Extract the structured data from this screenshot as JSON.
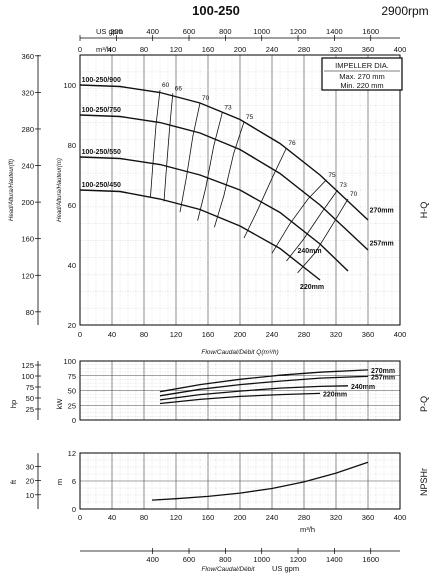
{
  "header": {
    "title": "100-250",
    "speed": "2900rpm"
  },
  "legend_box": {
    "title": "IMPELLER DIA.",
    "max": "Max. 270 mm",
    "min": "Min. 220 mm"
  },
  "side_labels": {
    "hq": "H-Q",
    "pq": "P-Q",
    "npsh": "NPSHr"
  },
  "axes": {
    "top_unit": "US gpm",
    "flow_unit": "m³/h",
    "flow_label": "Flow/Caudal/Débit Q(m³/h)",
    "flow_label_bottom": "Flow/Caudal/Débit",
    "gpm_unit_bottom": "US gpm",
    "head_m_label": "Head/Altura/Hauteur(m)",
    "head_ft_label": "Head/Altura/Hauteur(ft)",
    "hp_unit": "hp",
    "kw_unit": "kW",
    "ft_unit": "ft",
    "m_unit": "m"
  },
  "chart_data": [
    {
      "type": "line",
      "title": "100-250",
      "xlabel": "Flow/Caudal/Débit Q(m³/h)",
      "ylabel": "Head/Altura/Hauteur(m)",
      "xlim": [
        0,
        400
      ],
      "ylim": [
        20,
        110
      ],
      "x_ticks": [
        0,
        40,
        80,
        120,
        160,
        200,
        240,
        280,
        320,
        360,
        400
      ],
      "y_ticks": [
        20,
        40,
        60,
        80,
        100
      ],
      "secondary_y_ticks_ft": [
        80,
        120,
        160,
        200,
        240,
        280,
        320,
        360
      ],
      "secondary_x_ticks_usgpm": [
        0,
        200,
        400,
        600,
        800,
        1000,
        1200,
        1400,
        1600
      ],
      "series": [
        {
          "name": "100-250/900",
          "label_right": "270mm",
          "x": [
            0,
            50,
            100,
            150,
            200,
            250,
            300,
            360
          ],
          "y": [
            100,
            99.5,
            97.5,
            94,
            88.5,
            80.5,
            70,
            55
          ]
        },
        {
          "name": "100-250/750",
          "label_right": "257mm",
          "x": [
            0,
            50,
            100,
            150,
            200,
            250,
            300,
            360
          ],
          "y": [
            90,
            89.5,
            87.5,
            84,
            78.5,
            70.5,
            60,
            45
          ]
        },
        {
          "name": "100-250/550",
          "label_right": "240mm",
          "x": [
            0,
            50,
            100,
            150,
            200,
            250,
            300,
            335
          ],
          "y": [
            76,
            75.5,
            73.5,
            70,
            65,
            57.5,
            47,
            38
          ]
        },
        {
          "name": "100-250/450",
          "label_right": "220mm",
          "x": [
            0,
            50,
            100,
            150,
            200,
            250,
            300
          ],
          "y": [
            65,
            64.5,
            62,
            58.5,
            53,
            45.5,
            35
          ]
        }
      ],
      "efficiency_curves": [
        {
          "label": "60",
          "x": [
            100,
            95,
            91,
            88
          ],
          "y": [
            98.3,
            86.6,
            73.2,
            62.5
          ]
        },
        {
          "label": "66",
          "x": [
            116,
            112,
            108,
            105
          ],
          "y": [
            97.2,
            85.6,
            72.1,
            61.2
          ]
        },
        {
          "label": "70",
          "x": [
            150,
            141,
            133,
            125
          ],
          "y": [
            94.0,
            82.8,
            69.2,
            57.6
          ]
        },
        {
          "label": "73",
          "x": [
            178,
            167,
            157,
            147
          ],
          "y": [
            90.9,
            79.5,
            65.5,
            54.8
          ]
        },
        {
          "label": "75",
          "x": [
            205,
            192,
            180,
            168
          ],
          "y": [
            87.7,
            77.1,
            63.3,
            52.6
          ]
        },
        {
          "label": "76",
          "x": [
            258,
            240,
            222,
            205
          ],
          "y": [
            79.0,
            68.9,
            58.3,
            49.0
          ]
        },
        {
          "label": "75",
          "x": [
            308,
            285,
            262,
            240
          ],
          "y": [
            68.4,
            62.0,
            53.6,
            43.9
          ]
        },
        {
          "label": "73",
          "x": [
            322,
            302,
            280,
            258
          ],
          "y": [
            65.0,
            57.5,
            48.8,
            41.3
          ]
        },
        {
          "label": "70",
          "x": [
            335,
            316,
            294,
            272
          ],
          "y": [
            62.0,
            53.6,
            44.1,
            37.4
          ]
        }
      ]
    },
    {
      "type": "line",
      "title": "",
      "ylabel": "kW",
      "xlim": [
        0,
        400
      ],
      "ylim": [
        0,
        100
      ],
      "y_ticks": [
        0,
        25,
        50,
        75,
        100
      ],
      "secondary_y_ticks_hp": [
        25,
        50,
        75,
        100,
        125
      ],
      "series": [
        {
          "name": "270mm",
          "x": [
            100,
            150,
            200,
            250,
            300,
            360
          ],
          "y": [
            48,
            60,
            69,
            76,
            81,
            85
          ]
        },
        {
          "name": "257mm",
          "x": [
            100,
            150,
            200,
            250,
            300,
            360
          ],
          "y": [
            41,
            52,
            60,
            66,
            71,
            74
          ]
        },
        {
          "name": "240mm",
          "x": [
            100,
            150,
            200,
            250,
            300,
            335
          ],
          "y": [
            34,
            43,
            49,
            54,
            57,
            58
          ]
        },
        {
          "name": "220mm",
          "x": [
            100,
            150,
            200,
            250,
            300
          ],
          "y": [
            28,
            35,
            40,
            43,
            45
          ]
        }
      ]
    },
    {
      "type": "line",
      "title": "",
      "ylabel": "m",
      "xlabel": "Flow/Caudal/Débit US gpm",
      "xlim": [
        0,
        400
      ],
      "ylim": [
        0,
        12
      ],
      "y_ticks": [
        0,
        6,
        12
      ],
      "secondary_y_ticks_ft": [
        10,
        20,
        30
      ],
      "secondary_x_ticks_usgpm": [
        400,
        600,
        800,
        1000,
        1200,
        1400,
        1600
      ],
      "series": [
        {
          "name": "NPSHr",
          "x": [
            90,
            120,
            160,
            200,
            240,
            280,
            320,
            360
          ],
          "y": [
            1.9,
            2.2,
            2.7,
            3.4,
            4.4,
            5.8,
            7.7,
            10.0
          ]
        }
      ]
    }
  ]
}
